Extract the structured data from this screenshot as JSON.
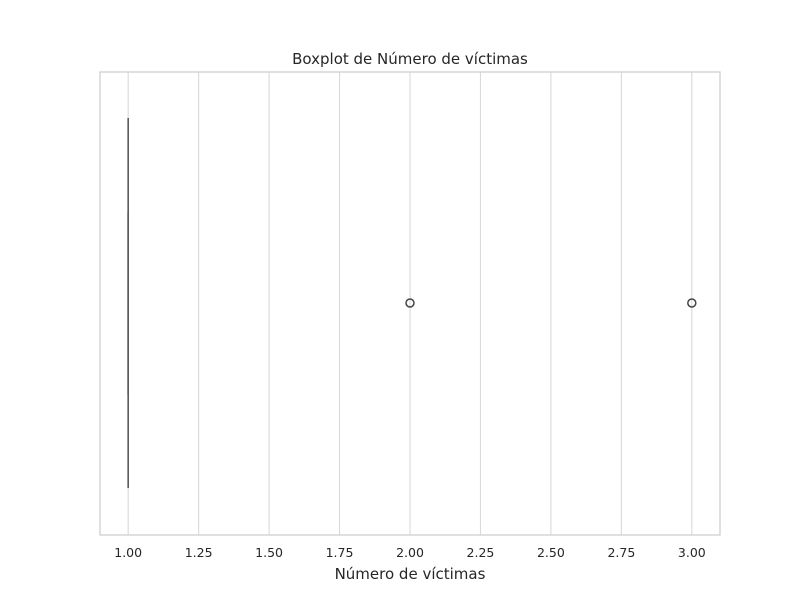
{
  "chart_data": {
    "type": "boxplot",
    "orientation": "horizontal",
    "title": "Boxplot de Número de víctimas",
    "xlabel": "Número de víctimas",
    "xlim": [
      0.9,
      3.1
    ],
    "xticks": [
      1.0,
      1.25,
      1.5,
      1.75,
      2.0,
      2.25,
      2.5,
      2.75,
      3.0
    ],
    "xtick_labels": [
      "1.00",
      "1.25",
      "1.50",
      "1.75",
      "2.00",
      "2.25",
      "2.50",
      "2.75",
      "3.00"
    ],
    "grid": "vertical",
    "box": {
      "min": 1.0,
      "q1": 1.0,
      "median": 1.0,
      "q3": 1.0,
      "max": 1.0
    },
    "outliers": [
      2.0,
      3.0
    ],
    "colors": {
      "box": "#5a5a5a",
      "grid": "#d9d9d9",
      "frame": "#d0d0d0",
      "text": "#262626"
    }
  }
}
